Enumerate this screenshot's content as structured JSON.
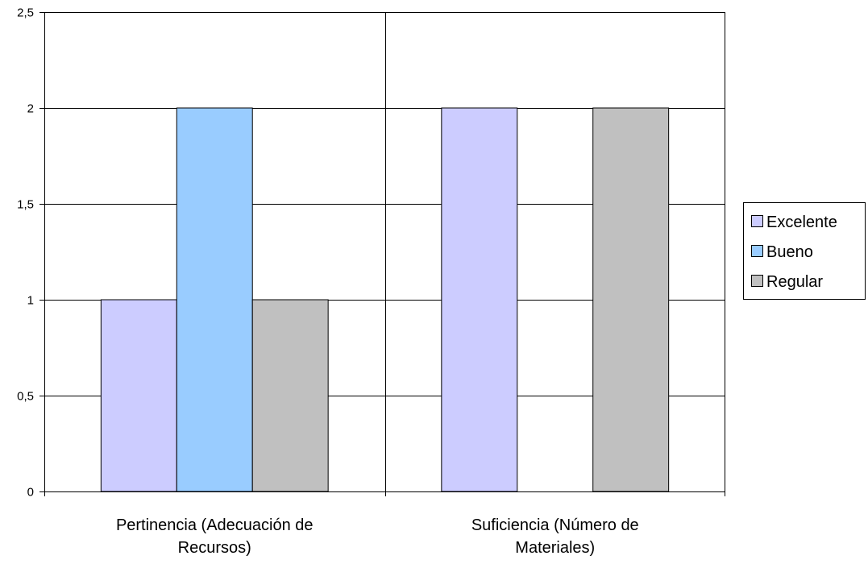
{
  "chart_data": {
    "type": "bar",
    "title": "",
    "xlabel": "",
    "ylabel": "",
    "ylim": [
      0,
      2.5
    ],
    "yticks": [
      0,
      0.5,
      1,
      1.5,
      2,
      2.5
    ],
    "ytick_labels": [
      "0",
      "0,5",
      "1",
      "1,5",
      "2",
      "2,5"
    ],
    "grid": true,
    "legend_position": "right",
    "categories": [
      [
        "Pertinencia (Adecuación de",
        "Recursos)"
      ],
      [
        "Suficiencia (Número de",
        "Materiales)"
      ]
    ],
    "series": [
      {
        "name": "Excelente",
        "color": "#ccccff",
        "values": [
          1,
          2
        ]
      },
      {
        "name": "Bueno",
        "color": "#99ccff",
        "values": [
          2,
          0
        ]
      },
      {
        "name": "Regular",
        "color": "#c0c0c0",
        "values": [
          1,
          2
        ]
      }
    ]
  }
}
